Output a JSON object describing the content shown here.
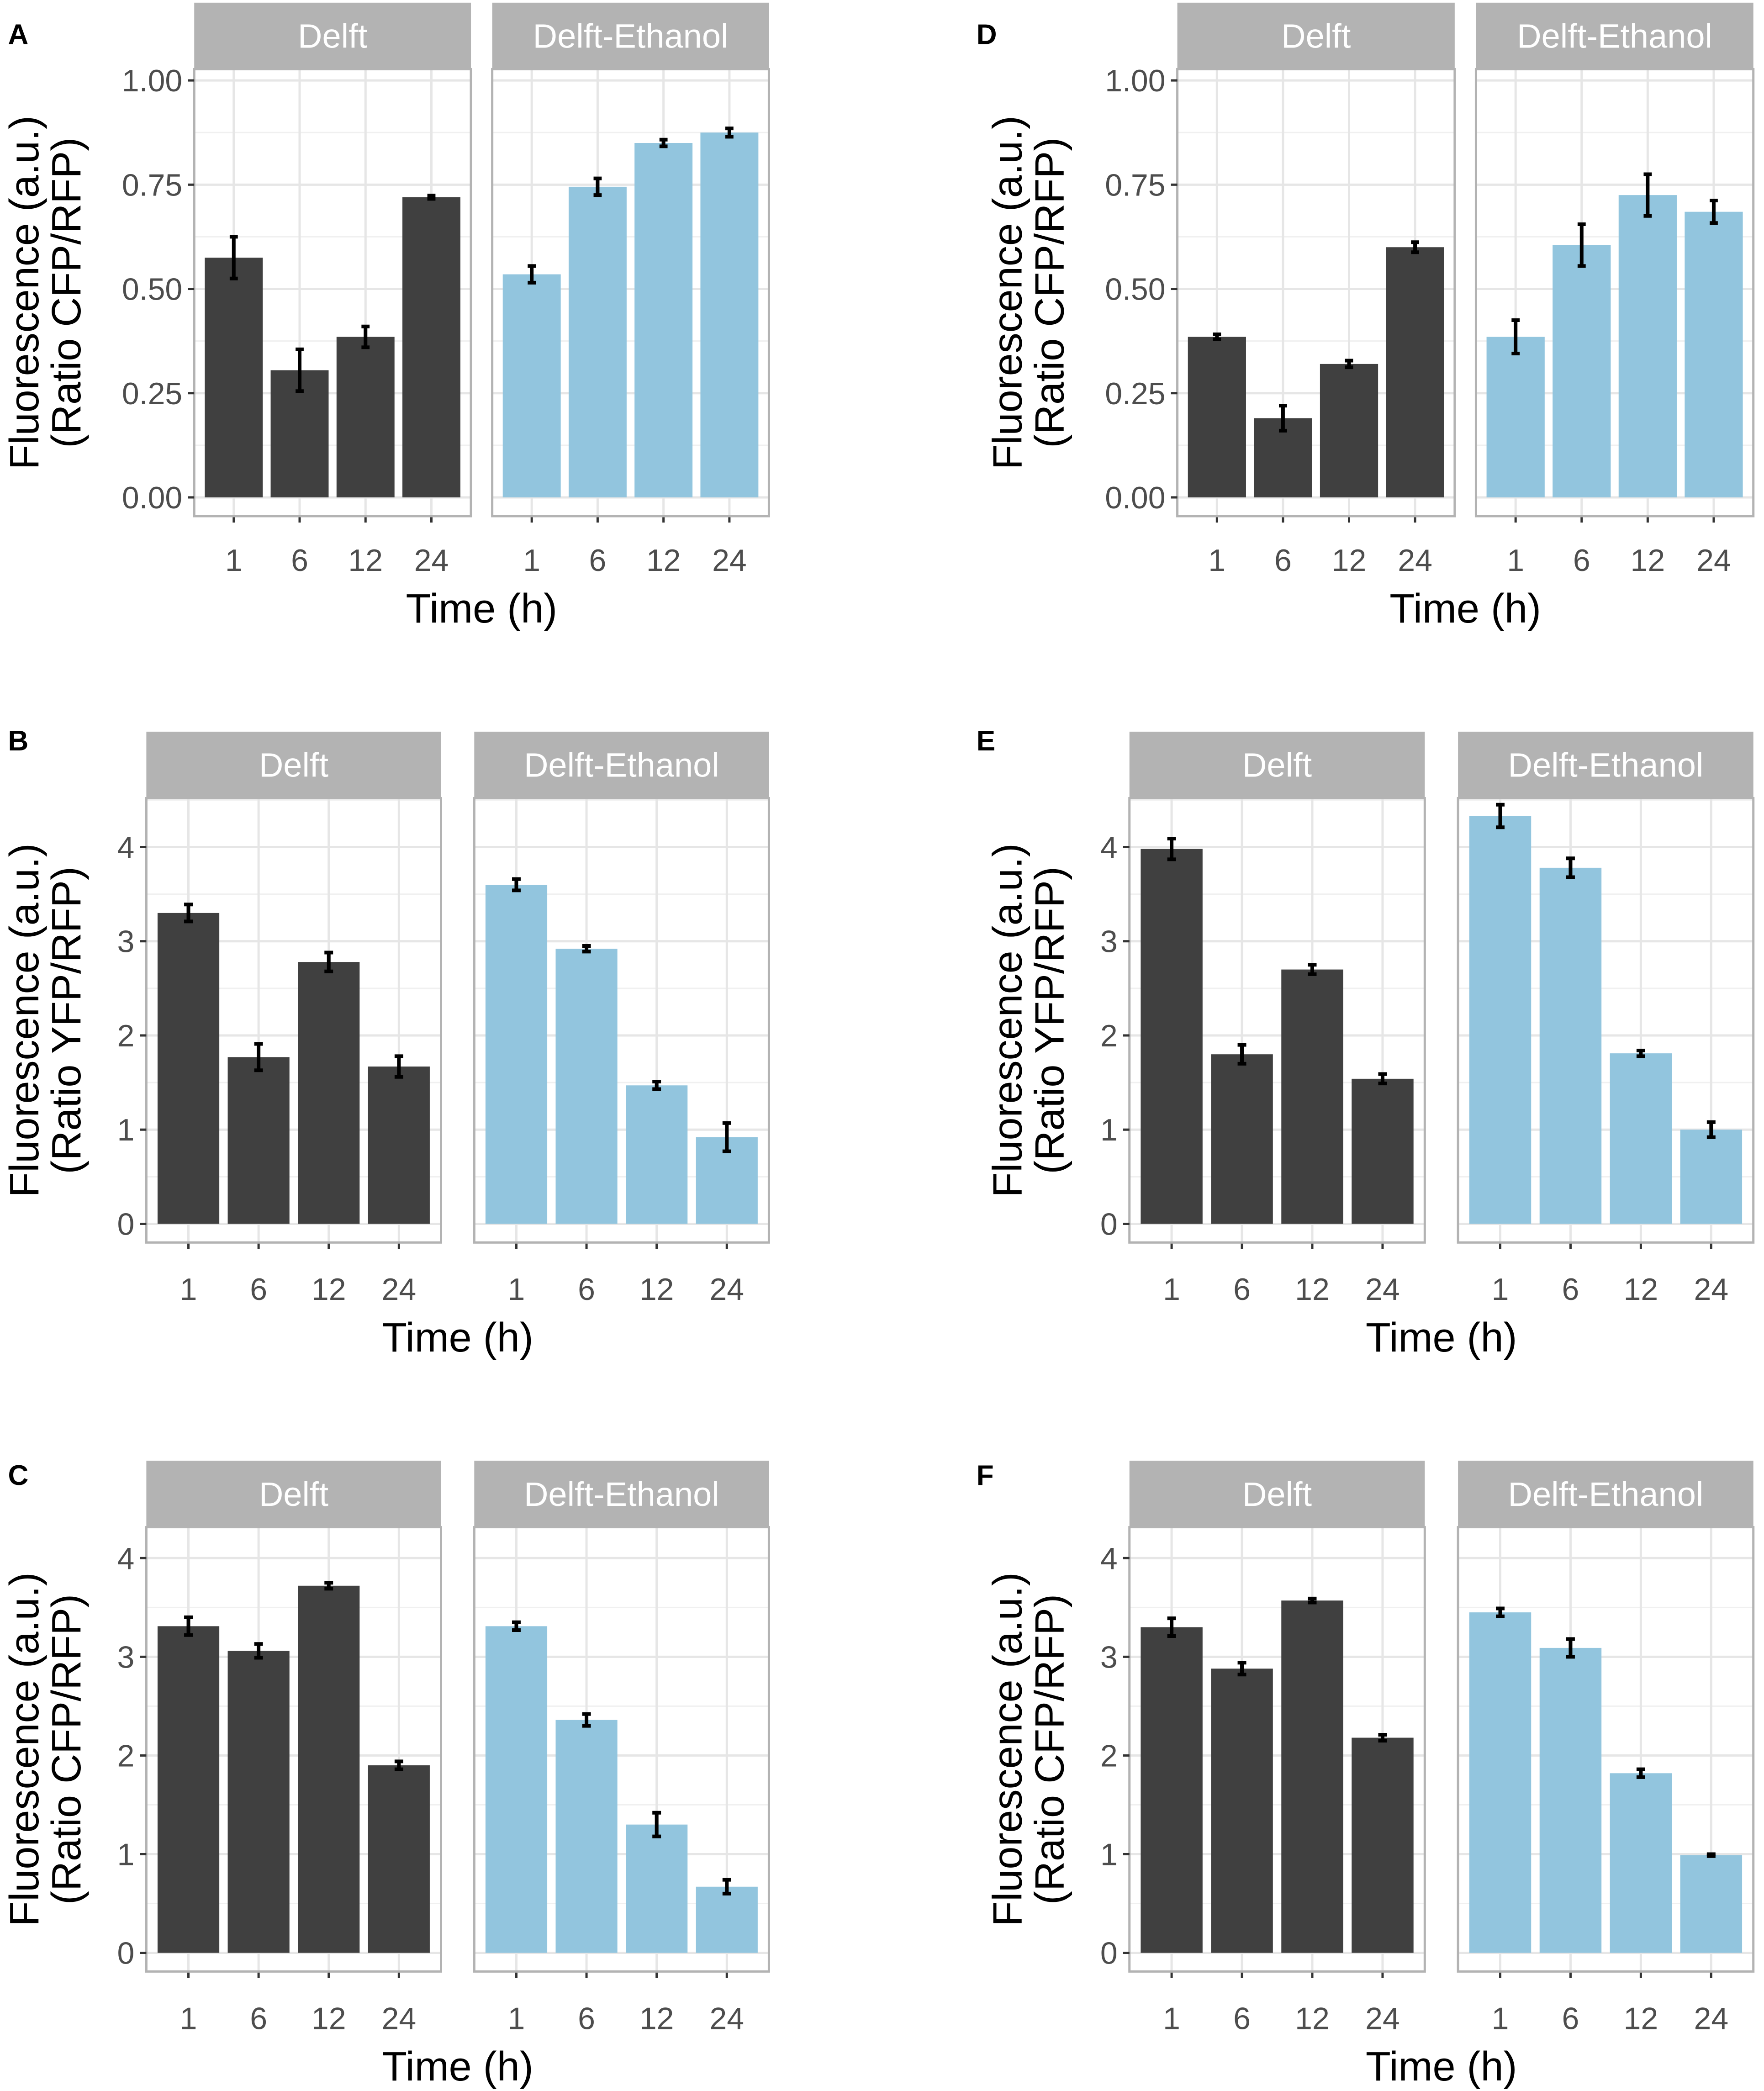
{
  "colors": {
    "Delft": "#404040",
    "Delft-Ethanol": "#92c5de",
    "strip": "#b3b3b3",
    "grid": "#e6e6e6",
    "frame": "#b3b3b3",
    "errorbar": "#000000"
  },
  "chart_data": [
    {
      "panel": "A",
      "type": "bar",
      "facets": [
        "Delft",
        "Delft-Ethanol"
      ],
      "categories": [
        "1",
        "6",
        "12",
        "24"
      ],
      "ylabel_line1": "Fluorescence (a.u.)",
      "ylabel_line2": "(Ratio CFP/RFP)",
      "xlabel": "Time (h)",
      "ylim": [
        0,
        1.0
      ],
      "yticks": [
        0,
        0.25,
        0.5,
        0.75,
        1.0
      ],
      "ytick_labels": [
        "0.00",
        "0.25",
        "0.50",
        "0.75",
        "1.00"
      ],
      "series": [
        {
          "name": "Delft",
          "values": [
            0.575,
            0.305,
            0.385,
            0.72
          ],
          "errors": [
            0.05,
            0.05,
            0.025,
            0.004
          ]
        },
        {
          "name": "Delft-Ethanol",
          "values": [
            0.535,
            0.745,
            0.85,
            0.875
          ],
          "errors": [
            0.02,
            0.02,
            0.008,
            0.01
          ]
        }
      ]
    },
    {
      "panel": "B",
      "type": "bar",
      "facets": [
        "Delft",
        "Delft-Ethanol"
      ],
      "categories": [
        "1",
        "6",
        "12",
        "24"
      ],
      "ylabel_line1": "Fluorescence (a.u.)",
      "ylabel_line2": "(Ratio YFP/RFP)",
      "xlabel": "Time (h)",
      "ylim": [
        0,
        4.4
      ],
      "yticks": [
        0,
        1,
        2,
        3,
        4
      ],
      "ytick_labels": [
        "0",
        "1",
        "2",
        "3",
        "4"
      ],
      "series": [
        {
          "name": "Delft",
          "values": [
            3.3,
            1.77,
            2.78,
            1.67
          ],
          "errors": [
            0.09,
            0.14,
            0.1,
            0.11
          ]
        },
        {
          "name": "Delft-Ethanol",
          "values": [
            3.6,
            2.92,
            1.47,
            0.92
          ],
          "errors": [
            0.06,
            0.03,
            0.04,
            0.15
          ]
        }
      ]
    },
    {
      "panel": "C",
      "type": "bar",
      "facets": [
        "Delft",
        "Delft-Ethanol"
      ],
      "categories": [
        "1",
        "6",
        "12",
        "24"
      ],
      "ylabel_line1": "Fluorescence (a.u.)",
      "ylabel_line2": "(Ratio CFP/RFP)",
      "xlabel": "Time (h)",
      "ylim": [
        0,
        4.2
      ],
      "yticks": [
        0,
        1,
        2,
        3,
        4
      ],
      "ytick_labels": [
        "0",
        "1",
        "2",
        "3",
        "4"
      ],
      "series": [
        {
          "name": "Delft",
          "values": [
            3.31,
            3.06,
            3.72,
            1.9
          ],
          "errors": [
            0.09,
            0.07,
            0.03,
            0.04
          ]
        },
        {
          "name": "Delft-Ethanol",
          "values": [
            3.31,
            2.36,
            1.3,
            0.67
          ],
          "errors": [
            0.04,
            0.06,
            0.12,
            0.07
          ]
        }
      ]
    },
    {
      "panel": "D",
      "type": "bar",
      "facets": [
        "Delft",
        "Delft-Ethanol"
      ],
      "categories": [
        "1",
        "6",
        "12",
        "24"
      ],
      "ylabel_line1": "Fluorescence (a.u.)",
      "ylabel_line2": "(Ratio CFP/RFP)",
      "xlabel": "Time (h)",
      "ylim": [
        0,
        1.0
      ],
      "yticks": [
        0,
        0.25,
        0.5,
        0.75,
        1.0
      ],
      "ytick_labels": [
        "0.00",
        "0.25",
        "0.50",
        "0.75",
        "1.00"
      ],
      "series": [
        {
          "name": "Delft",
          "values": [
            0.385,
            0.19,
            0.32,
            0.6
          ],
          "errors": [
            0.006,
            0.03,
            0.008,
            0.012
          ]
        },
        {
          "name": "Delft-Ethanol",
          "values": [
            0.385,
            0.605,
            0.725,
            0.685
          ],
          "errors": [
            0.04,
            0.05,
            0.05,
            0.027
          ]
        }
      ]
    },
    {
      "panel": "E",
      "type": "bar",
      "facets": [
        "Delft",
        "Delft-Ethanol"
      ],
      "categories": [
        "1",
        "6",
        "12",
        "24"
      ],
      "ylabel_line1": "Fluorescence (a.u.)",
      "ylabel_line2": "(Ratio YFP/RFP)",
      "xlabel": "Time (h)",
      "ylim": [
        0,
        4.4
      ],
      "yticks": [
        0,
        1,
        2,
        3,
        4
      ],
      "ytick_labels": [
        "0",
        "1",
        "2",
        "3",
        "4"
      ],
      "series": [
        {
          "name": "Delft",
          "values": [
            3.98,
            1.8,
            2.7,
            1.54
          ],
          "errors": [
            0.11,
            0.1,
            0.05,
            0.05
          ]
        },
        {
          "name": "Delft-Ethanol",
          "values": [
            4.33,
            3.78,
            1.81,
            1.0
          ],
          "errors": [
            0.12,
            0.1,
            0.03,
            0.08
          ]
        }
      ]
    },
    {
      "panel": "F",
      "type": "bar",
      "facets": [
        "Delft",
        "Delft-Ethanol"
      ],
      "categories": [
        "1",
        "6",
        "12",
        "24"
      ],
      "ylabel_line1": "Fluorescence (a.u.)",
      "ylabel_line2": "(Ratio CFP/RFP)",
      "xlabel": "Time (h)",
      "ylim": [
        0,
        4.2
      ],
      "yticks": [
        0,
        1,
        2,
        3,
        4
      ],
      "ytick_labels": [
        "0",
        "1",
        "2",
        "3",
        "4"
      ],
      "series": [
        {
          "name": "Delft",
          "values": [
            3.3,
            2.88,
            3.57,
            2.18
          ],
          "errors": [
            0.09,
            0.06,
            0.02,
            0.03
          ]
        },
        {
          "name": "Delft-Ethanol",
          "values": [
            3.45,
            3.09,
            1.82,
            0.99
          ],
          "errors": [
            0.04,
            0.09,
            0.04,
            0.01
          ]
        }
      ]
    }
  ]
}
